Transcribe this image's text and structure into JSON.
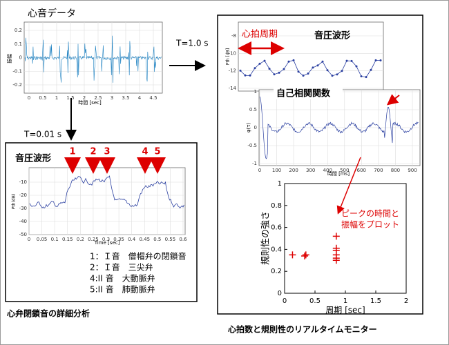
{
  "source": {
    "title": "心音データ",
    "ylabel": "振幅",
    "xlabel": "時間 [sec]",
    "yticks": [
      0.2,
      0.1,
      0,
      -0.1,
      -0.2
    ],
    "xticks": [
      0,
      0.5,
      1,
      1.5,
      2,
      2.5,
      3,
      3.5,
      4,
      4.5
    ]
  },
  "arrows": {
    "down": "T=0.01 s",
    "right": "T=1.0 s"
  },
  "detail": {
    "title": "音圧波形",
    "markers": [
      "1",
      "2",
      "3",
      "4",
      "5"
    ],
    "ylabel": "Pth(dB)",
    "xlabel": "Time [sec]",
    "yticks": [
      -10,
      -20,
      -30,
      -40,
      -50
    ],
    "xticks": [
      0,
      0.05,
      0.1,
      0.15,
      0.2,
      0.25,
      0.3,
      0.35,
      0.4,
      0.45,
      0.5,
      0.55,
      0.6
    ],
    "legend": [
      "1：Ｉ音　僧帽弁の閉鎖音",
      "2：Ｉ音　三尖弁",
      "4:II 音　大動脈弁",
      "5:II 音　肺動脈弁"
    ],
    "caption": "心弁閉鎖音の詳細分析"
  },
  "monitor": {
    "pressure": {
      "period_label": "心拍周期",
      "title": "音圧波形",
      "ylabel": "Pth [dB]",
      "yticks": [
        -8,
        -10,
        -12,
        -14
      ]
    },
    "autocorr": {
      "title": "自己相関関数",
      "ylabel": "φ(τ)",
      "xlabel": "時間 [ms]",
      "yticks": [
        1,
        0.5,
        0,
        -0.5,
        -1
      ],
      "xticks": [
        0,
        100,
        200,
        300,
        400,
        500,
        600,
        700,
        800,
        900
      ]
    },
    "scatter": {
      "xlabel": "周期 [sec]",
      "ylabel": "規則性の強さ",
      "xlim": [
        0,
        2
      ],
      "ylim": [
        0,
        1
      ],
      "xticks": [
        0,
        0.5,
        1,
        1.5,
        2
      ],
      "yticks": [
        0,
        0.2,
        0.4,
        0.6,
        0.8,
        1
      ],
      "x": [
        0.13,
        0.33,
        0.35,
        0.85,
        0.85,
        0.85,
        0.85,
        0.85,
        0.85
      ],
      "y": [
        0.35,
        0.34,
        0.35,
        0.52,
        0.41,
        0.39,
        0.35,
        0.32,
        0.3
      ]
    },
    "annotation": [
      "ピークの時間と",
      "振幅をプロット"
    ],
    "caption": "心拍数と規則性のリアルタイムモニター"
  }
}
